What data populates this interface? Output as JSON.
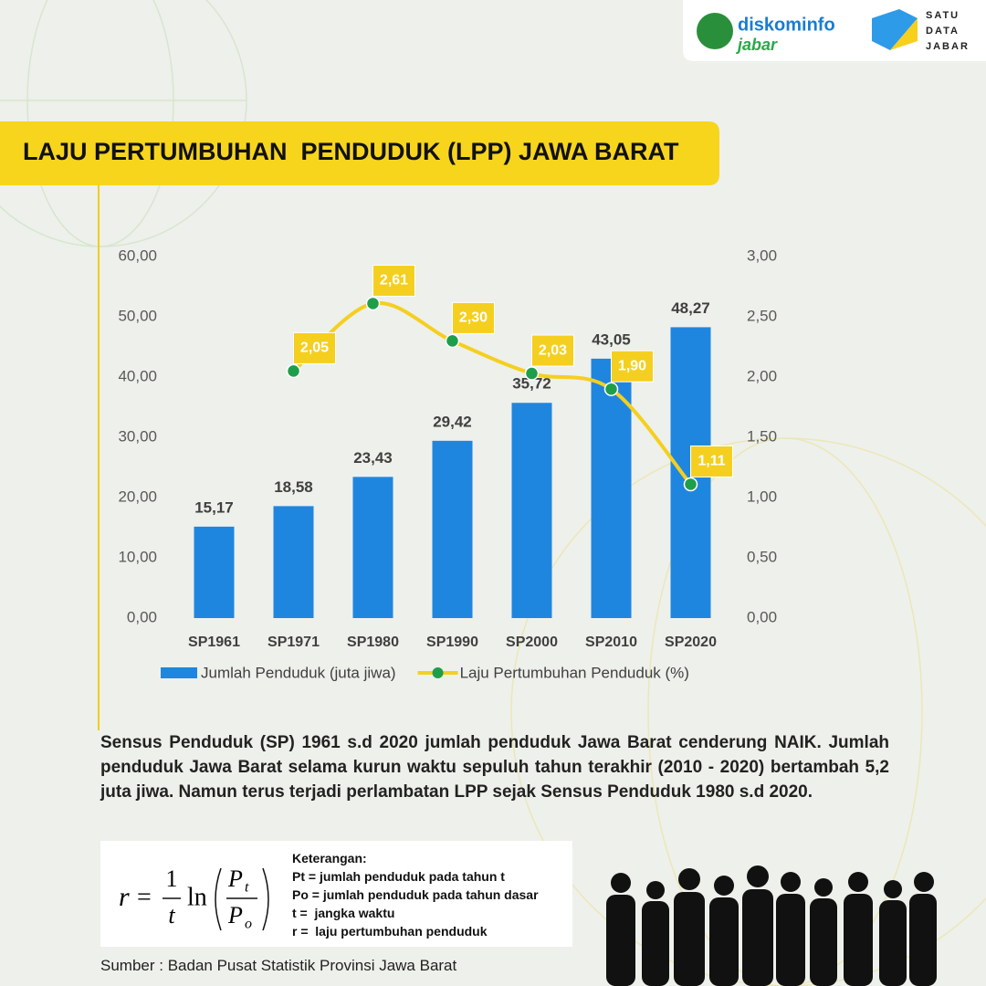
{
  "header": {
    "logo_left_top": "diskominfo",
    "logo_left_bottom": "jabar",
    "logo_right": [
      "SATU",
      "DATA",
      "JABAR"
    ]
  },
  "chart_data": {
    "type": "bar",
    "title": "LAJU PERTUMBUHAN  PENDUDUK (LPP) JAWA BARAT",
    "categories": [
      "SP1961",
      "SP1971",
      "SP1980",
      "SP1990",
      "SP2000",
      "SP2010",
      "SP2020"
    ],
    "series": [
      {
        "name": "Jumlah Penduduk (juta jiwa)",
        "type": "bar",
        "color": "#1f86e0",
        "values": [
          15.17,
          18.58,
          23.43,
          29.42,
          35.72,
          43.05,
          48.27
        ],
        "value_labels": [
          "15,17",
          "18,58",
          "23,43",
          "29,42",
          "35,72",
          "43,05",
          "48,27"
        ]
      },
      {
        "name": "Laju Pertumbuhan Penduduk (%)",
        "type": "line",
        "axis": "y2",
        "color": "#f5cf1f",
        "marker_color": "#1f9e4a",
        "values": [
          null,
          2.05,
          2.61,
          2.3,
          2.03,
          1.9,
          1.11
        ],
        "value_labels": [
          null,
          "2,05",
          "2,61",
          "2,30",
          "2,03",
          "1,90",
          "1,11"
        ]
      }
    ],
    "ylim": [
      0,
      60
    ],
    "yticks": [
      {
        "value": 0,
        "label": "0,00"
      },
      {
        "value": 10,
        "label": "10,00"
      },
      {
        "value": 20,
        "label": "20,00"
      },
      {
        "value": 30,
        "label": "30,00"
      },
      {
        "value": 40,
        "label": "40,00"
      },
      {
        "value": 50,
        "label": "50,00"
      },
      {
        "value": 60,
        "label": "60,00"
      }
    ],
    "y2lim": [
      0,
      3
    ],
    "y2ticks": [
      {
        "value": 0,
        "label": "0,00"
      },
      {
        "value": 0.5,
        "label": "0,50"
      },
      {
        "value": 1,
        "label": "1,00"
      },
      {
        "value": 1.5,
        "label": "1,50"
      },
      {
        "value": 2,
        "label": "2,00"
      },
      {
        "value": 2.5,
        "label": "2,50"
      },
      {
        "value": 3,
        "label": "3,00"
      }
    ],
    "grid": false,
    "legend": "bottom"
  },
  "description": "Sensus Penduduk (SP) 1961 s.d 2020 jumlah penduduk Jawa Barat cenderung NAIK. Jumlah penduduk Jawa Barat selama kurun waktu sepuluh tahun terakhir (2010 - 2020) bertambah 5,2 juta jiwa. Namun terus terjadi perlambatan LPP sejak Sensus Penduduk 1980 s.d 2020.",
  "formula": {
    "lhs": "r",
    "equals": "=",
    "numerator": "1",
    "denominator": "t",
    "function": "ln",
    "top_var": "P",
    "top_sub": "t",
    "bottom_var": "P",
    "bottom_sub": "o"
  },
  "notes": {
    "heading": "Keterangan:",
    "items": [
      "Pt = jumlah penduduk pada tahun t",
      "Po = jumlah penduduk pada tahun dasar",
      "t =  jangka waktu",
      "r =  laju pertumbuhan penduduk"
    ]
  },
  "source": "Sumber : Badan Pusat Statistik Provinsi Jawa Barat"
}
